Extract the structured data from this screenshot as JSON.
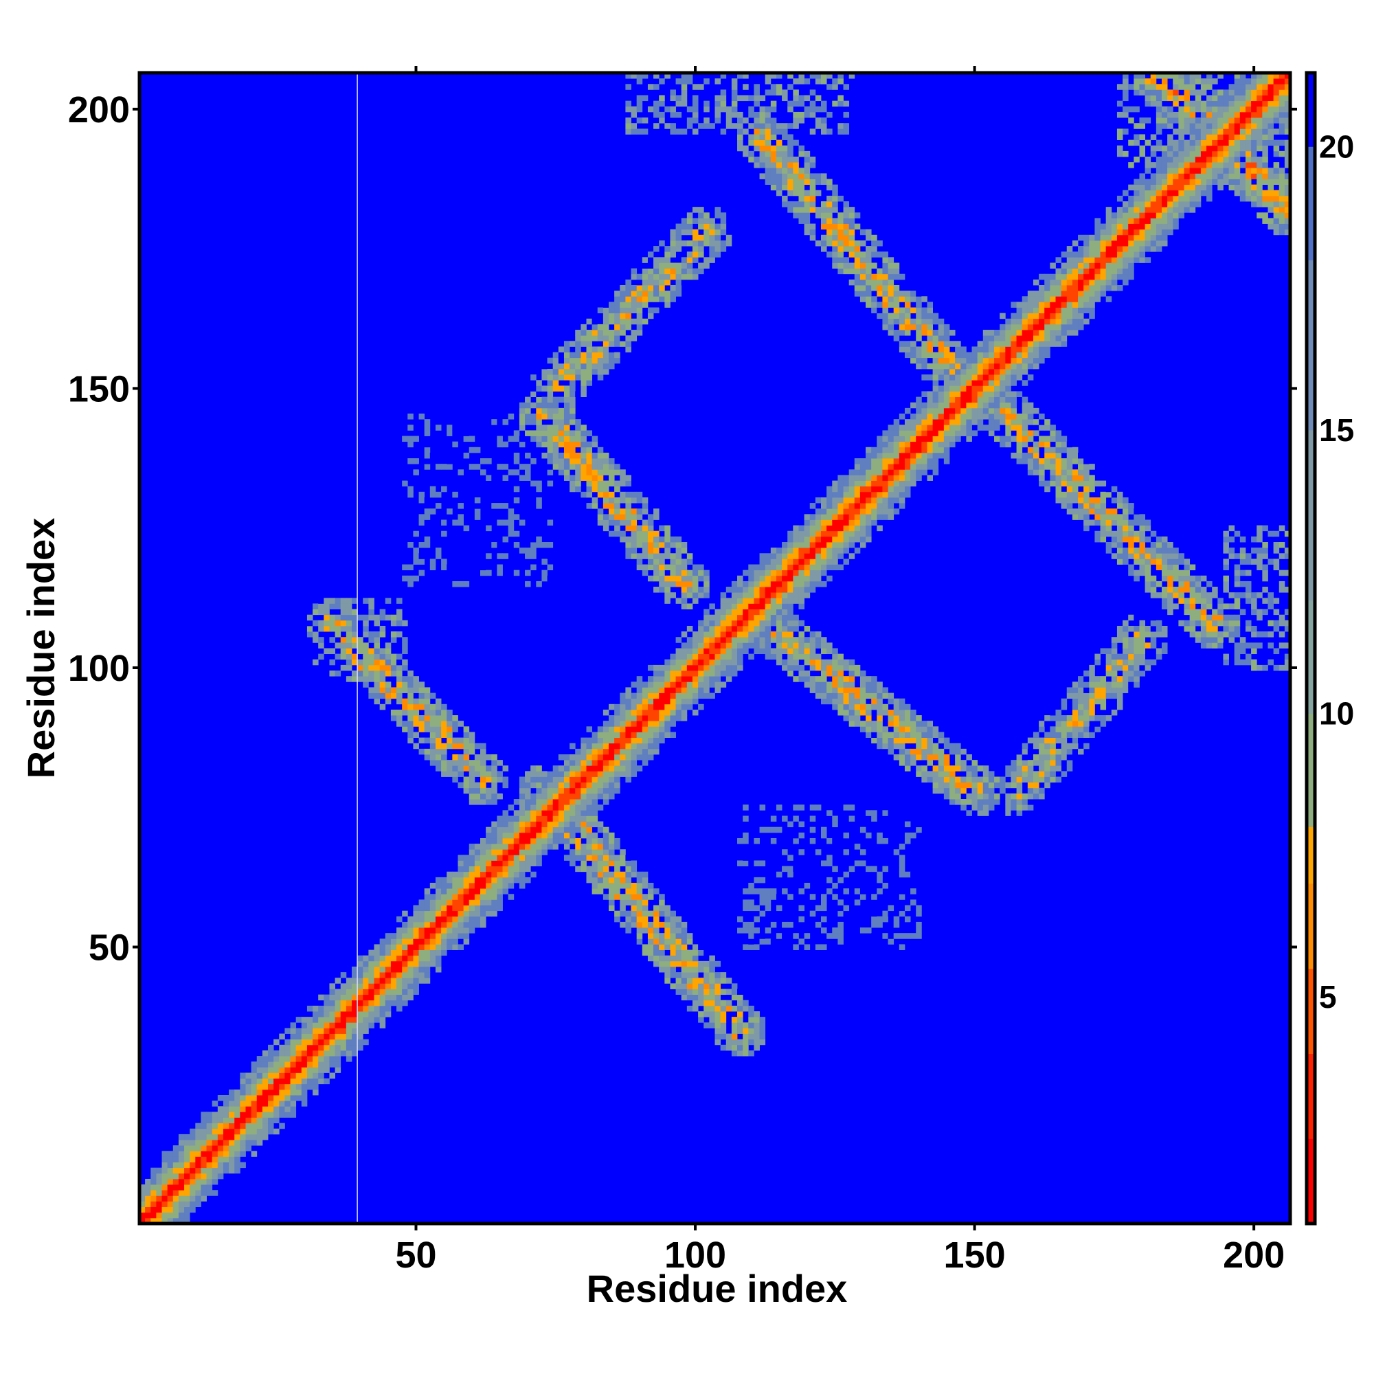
{
  "chart_data": {
    "type": "heatmap",
    "title": "",
    "xlabel": "Residue index",
    "ylabel": "Residue index",
    "xlim": [
      1,
      206
    ],
    "ylim": [
      1,
      206
    ],
    "x_ticks": [
      50,
      100,
      150,
      200
    ],
    "y_ticks": [
      50,
      100,
      150,
      200
    ],
    "colorbar": {
      "range": [
        1,
        21.3
      ],
      "ticks": [
        5,
        10,
        15,
        20
      ],
      "cutoff": 8,
      "below_cutoff_colors": [
        "#ff0000",
        "#ff4400",
        "#ff8a00",
        "#ffa500"
      ],
      "above_cutoff_colors": [
        "#8fae80",
        "#7f99a6",
        "#5f7fc0",
        "#0000ff"
      ]
    },
    "background_color": "#0000ff",
    "value_description": "pairwise residue distance",
    "features": {
      "diagonal": {
        "from": 1,
        "to": 206,
        "core_halfwidth": 1.5,
        "band_halfwidth": 6
      },
      "contact_bands": [
        {
          "x": [
            35,
            62
          ],
          "y": [
            108,
            80
          ],
          "mean_value": 11
        },
        {
          "x": [
            73,
            108
          ],
          "y": [
            78,
            35
          ],
          "mean_value": 11
        },
        {
          "x": [
            73,
            98
          ],
          "y": [
            145,
            115
          ],
          "mean_value": 11
        },
        {
          "x": [
            75,
            102
          ],
          "y": [
            150,
            178
          ],
          "mean_value": 12
        },
        {
          "x": [
            110,
            150
          ],
          "y": [
            110,
            78
          ],
          "mean_value": 11
        },
        {
          "x": [
            112,
            150
          ],
          "y": [
            195,
            148
          ],
          "mean_value": 11
        },
        {
          "x": [
            155,
            193
          ],
          "y": [
            146,
            108
          ],
          "mean_value": 11
        },
        {
          "x": [
            158,
            180
          ],
          "y": [
            78,
            105
          ],
          "mean_value": 12
        },
        {
          "x": [
            183,
            206
          ],
          "y": [
            206,
            182
          ],
          "mean_value": 10
        }
      ],
      "contact_patches": [
        {
          "x": [
            32,
            48
          ],
          "y": [
            98,
            112
          ],
          "mean_value": 13
        },
        {
          "x": [
            88,
            128
          ],
          "y": [
            196,
            206
          ],
          "mean_value": 13
        },
        {
          "x": [
            48,
            74
          ],
          "y": [
            115,
            145
          ],
          "mean_value": 16
        },
        {
          "x": [
            108,
            140
          ],
          "y": [
            50,
            75
          ],
          "mean_value": 16
        },
        {
          "x": [
            195,
            206
          ],
          "y": [
            100,
            125
          ],
          "mean_value": 13
        },
        {
          "x": [
            176,
            206
          ],
          "y": [
            190,
            206
          ],
          "mean_value": 12
        }
      ],
      "vertical_gap_line_at_x": 39
    }
  }
}
